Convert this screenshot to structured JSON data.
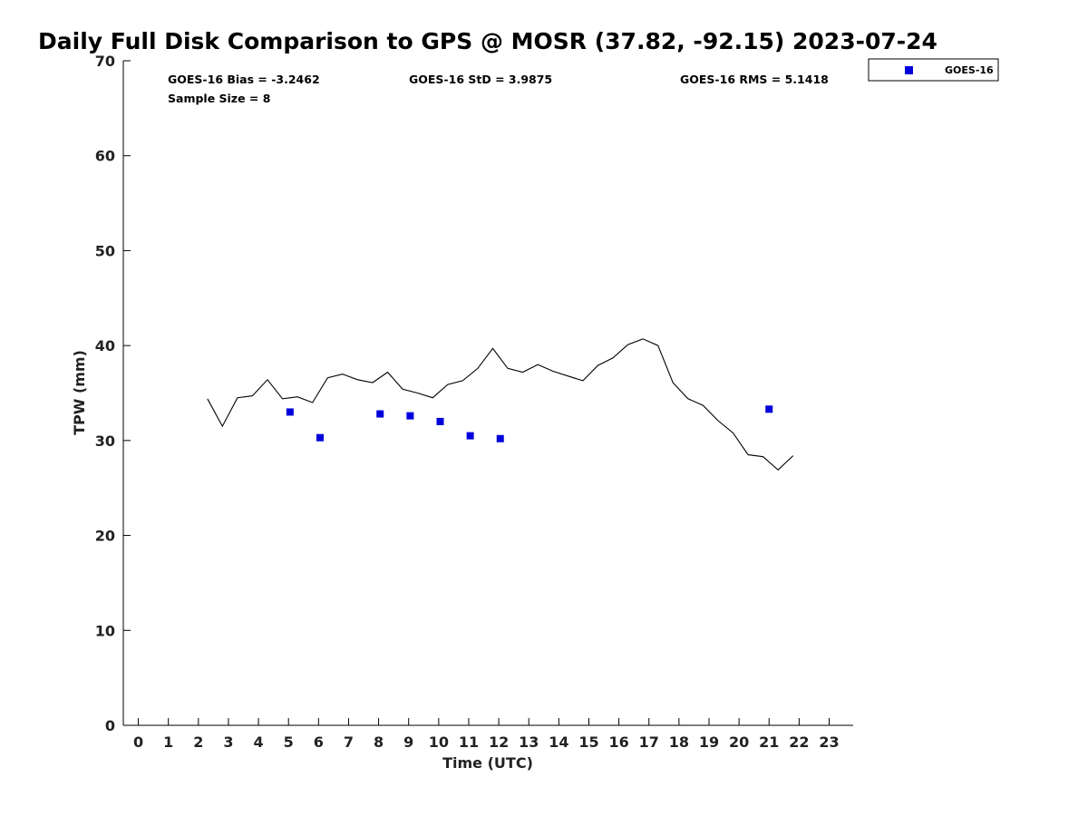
{
  "chart_data": {
    "type": "scatter",
    "title": "Daily Full Disk Comparison to GPS @ MOSR (37.82, -92.15) 2023-07-24",
    "xlabel": "Time (UTC)",
    "ylabel": "TPW (mm)",
    "xlim": [
      -0.5,
      23.8
    ],
    "ylim": [
      0,
      70
    ],
    "x_ticks": [
      0,
      1,
      2,
      3,
      4,
      5,
      6,
      7,
      8,
      9,
      10,
      11,
      12,
      13,
      14,
      15,
      16,
      17,
      18,
      19,
      20,
      21,
      22,
      23
    ],
    "y_ticks": [
      0,
      10,
      20,
      30,
      40,
      50,
      60,
      70
    ],
    "grid": false,
    "legend_position": "outside-top-right",
    "stats": {
      "bias": "GOES-16 Bias = -3.2462",
      "std": "GOES-16 StD = 3.9875",
      "rms": "GOES-16 RMS = 5.1418",
      "sample_size": "Sample Size = 8"
    },
    "series": [
      {
        "kind": "line",
        "color": "#000000",
        "x": [
          2.3,
          2.8,
          3.3,
          3.8,
          4.3,
          4.8,
          5.3,
          5.8,
          6.3,
          6.8,
          7.3,
          7.8,
          8.3,
          8.8,
          9.3,
          9.8,
          10.3,
          10.8,
          11.3,
          11.8,
          12.3,
          12.8,
          13.3,
          13.8,
          14.3,
          14.8,
          15.3,
          15.8,
          16.3,
          16.8,
          17.3,
          17.8,
          18.3,
          18.8,
          19.3,
          19.8,
          20.3,
          20.8,
          21.3,
          21.8
        ],
        "y": [
          34.4,
          31.5,
          34.5,
          34.7,
          36.4,
          34.4,
          34.6,
          34.0,
          36.6,
          37.0,
          36.4,
          36.1,
          37.2,
          35.4,
          35.0,
          34.5,
          35.9,
          36.3,
          37.6,
          39.7,
          37.6,
          37.2,
          38.0,
          37.3,
          36.8,
          36.3,
          37.9,
          38.7,
          40.1,
          40.7,
          40.0,
          36.1,
          34.4,
          33.7,
          32.1,
          30.8,
          28.5,
          28.3,
          26.9,
          28.4
        ]
      },
      {
        "name": "GOES-16",
        "kind": "scatter",
        "marker": "square",
        "color": "#0000dd",
        "x": [
          5.05,
          6.05,
          8.05,
          9.05,
          10.05,
          11.05,
          12.05,
          21.0
        ],
        "y": [
          33.0,
          30.3,
          32.8,
          32.6,
          32.0,
          30.5,
          30.2,
          33.3
        ]
      }
    ]
  }
}
